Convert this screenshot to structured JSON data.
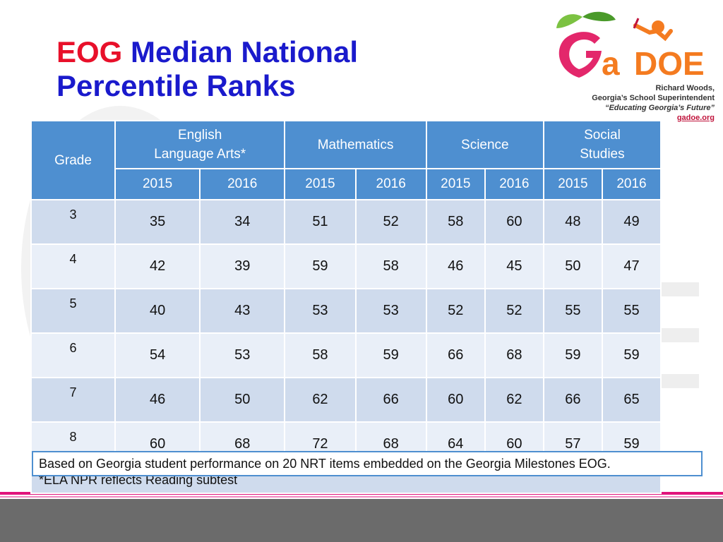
{
  "title": {
    "prefix": "EOG",
    "rest_line1": "Median National",
    "line2": "Percentile Ranks"
  },
  "logo": {
    "wordmark": "GaDOE"
  },
  "credit": {
    "name": "Richard Woods,",
    "role": "Georgia’s School Superintendent",
    "motto": "“Educating Georgia’s Future”",
    "url": "gadoe.org"
  },
  "table": {
    "grade_header": "Grade",
    "subjects": [
      {
        "line1": "English",
        "line2": "Language Arts*"
      },
      {
        "line1": "Mathematics",
        "line2": ""
      },
      {
        "line1": "Science",
        "line2": ""
      },
      {
        "line1": "Social",
        "line2": "Studies"
      }
    ],
    "years": [
      "2015",
      "2016",
      "2015",
      "2016",
      "2015",
      "2016",
      "2015",
      "2016"
    ],
    "rows": [
      {
        "grade": "3",
        "values": [
          "35",
          "34",
          "51",
          "52",
          "58",
          "60",
          "48",
          "49"
        ]
      },
      {
        "grade": "4",
        "values": [
          "42",
          "39",
          "59",
          "58",
          "46",
          "45",
          "50",
          "47"
        ]
      },
      {
        "grade": "5",
        "values": [
          "40",
          "43",
          "53",
          "53",
          "52",
          "52",
          "55",
          "55"
        ]
      },
      {
        "grade": "6",
        "values": [
          "54",
          "53",
          "58",
          "59",
          "66",
          "68",
          "59",
          "59"
        ]
      },
      {
        "grade": "7",
        "values": [
          "46",
          "50",
          "62",
          "66",
          "60",
          "62",
          "66",
          "65"
        ]
      },
      {
        "grade": "8",
        "values": [
          "60",
          "68",
          "72",
          "68",
          "64",
          "60",
          "57",
          "59"
        ]
      }
    ],
    "footnote": "*ELA NPR reflects Reading subtest"
  },
  "note": "Based on Georgia student performance on 20 NRT items embedded on the Georgia Milestones EOG.",
  "colors": {
    "header_blue": "#4e8fd0",
    "title_blue": "#1a1acc",
    "title_red": "#e8102a",
    "accent_pink": "#e0137b"
  }
}
